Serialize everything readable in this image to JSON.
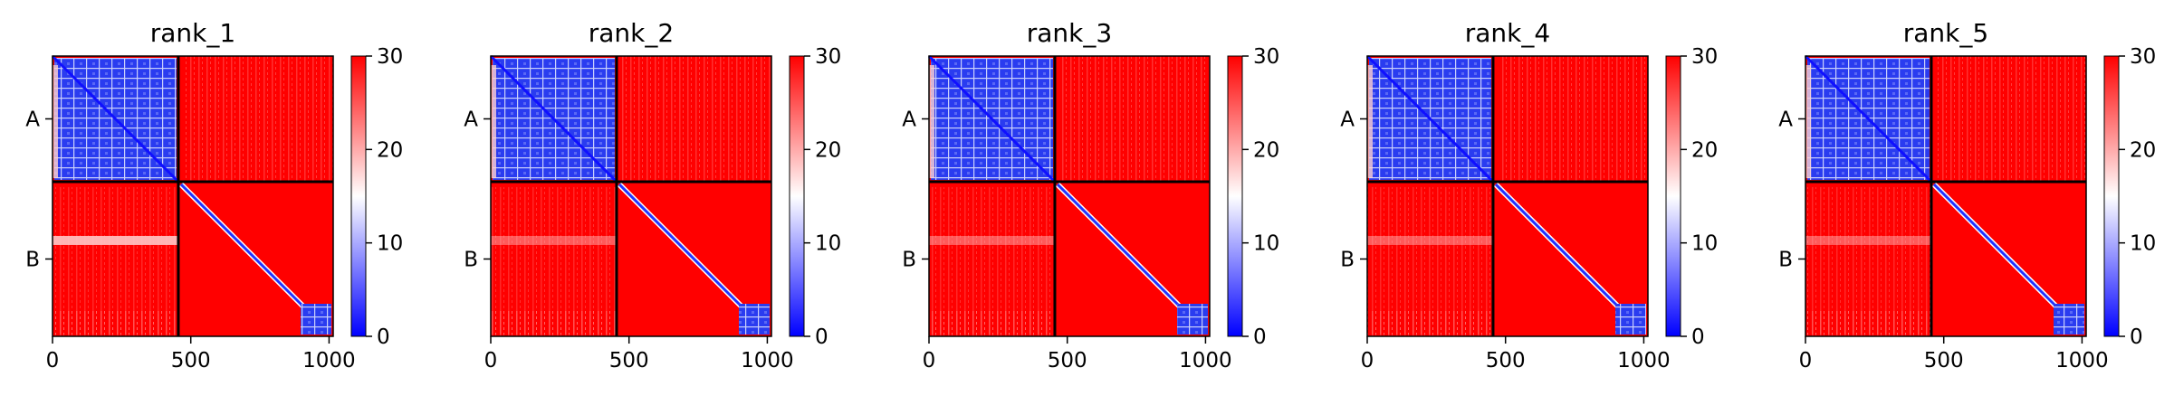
{
  "chart_data": [
    {
      "type": "heatmap",
      "title": "rank_1",
      "xticks": [
        0,
        500,
        1000
      ],
      "yticklabels": [
        "A",
        "B"
      ],
      "chain_boundary": 455,
      "length": 1015,
      "colorbar": {
        "ticks": [
          0,
          10,
          20,
          30
        ],
        "vmin": 0,
        "vmax": 30,
        "colors": [
          "#0000ff",
          "#ffffff",
          "#ff0000"
        ]
      }
    },
    {
      "type": "heatmap",
      "title": "rank_2",
      "xticks": [
        0,
        500,
        1000
      ],
      "yticklabels": [
        "A",
        "B"
      ],
      "chain_boundary": 455,
      "length": 1015,
      "colorbar": {
        "ticks": [
          0,
          10,
          20,
          30
        ],
        "vmin": 0,
        "vmax": 30,
        "colors": [
          "#0000ff",
          "#ffffff",
          "#ff0000"
        ]
      }
    },
    {
      "type": "heatmap",
      "title": "rank_3",
      "xticks": [
        0,
        500,
        1000
      ],
      "yticklabels": [
        "A",
        "B"
      ],
      "chain_boundary": 455,
      "length": 1015,
      "colorbar": {
        "ticks": [
          0,
          10,
          20,
          30
        ],
        "vmin": 0,
        "vmax": 30,
        "colors": [
          "#0000ff",
          "#ffffff",
          "#ff0000"
        ]
      }
    },
    {
      "type": "heatmap",
      "title": "rank_4",
      "xticks": [
        0,
        500,
        1000
      ],
      "yticklabels": [
        "A",
        "B"
      ],
      "chain_boundary": 455,
      "length": 1015,
      "colorbar": {
        "ticks": [
          0,
          10,
          20,
          30
        ],
        "vmin": 0,
        "vmax": 30,
        "colors": [
          "#0000ff",
          "#ffffff",
          "#ff0000"
        ]
      }
    },
    {
      "type": "heatmap",
      "title": "rank_5",
      "xticks": [
        0,
        500,
        1000
      ],
      "yticklabels": [
        "A",
        "B"
      ],
      "chain_boundary": 455,
      "length": 1015,
      "colorbar": {
        "ticks": [
          0,
          10,
          20,
          30
        ],
        "vmin": 0,
        "vmax": 30,
        "colors": [
          "#0000ff",
          "#ffffff",
          "#ff0000"
        ]
      }
    }
  ]
}
